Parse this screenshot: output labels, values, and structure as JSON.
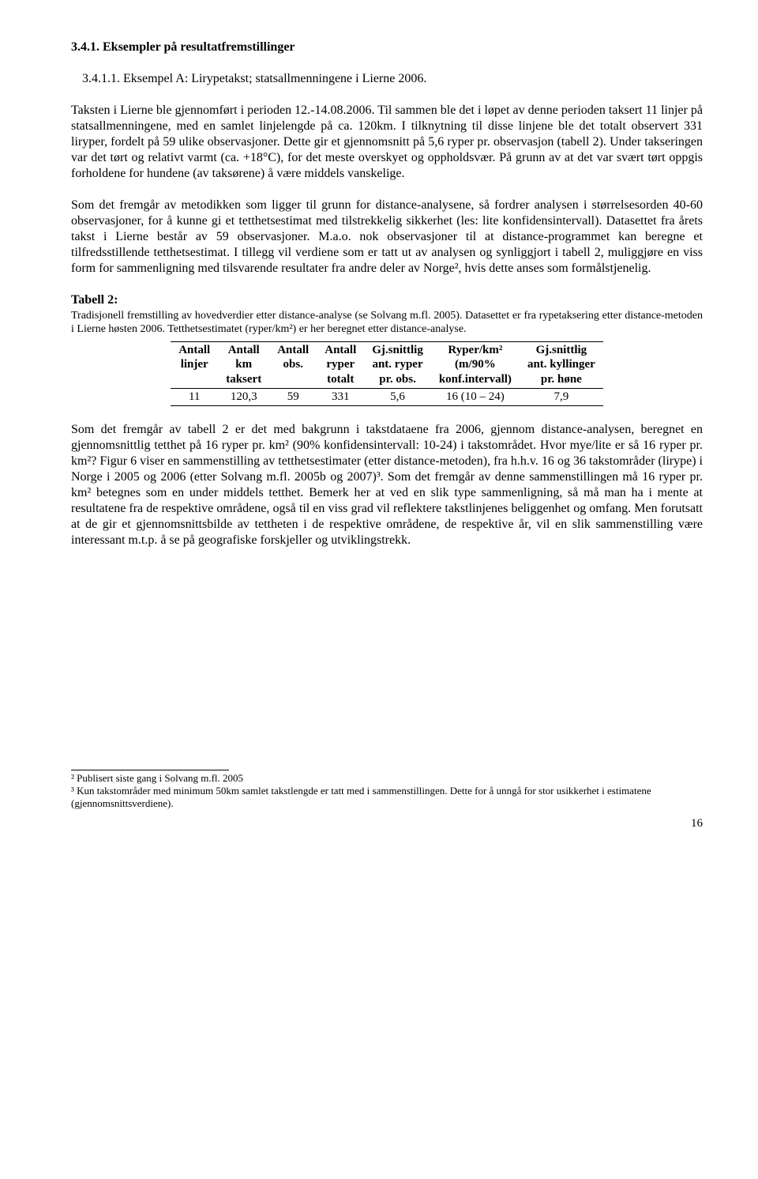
{
  "heading": "3.4.1. Eksempler på resultatfremstillinger",
  "subheading": "3.4.1.1. Eksempel A: Lirypetakst; statsallmenningene i Lierne 2006.",
  "para1": "Taksten i Lierne ble gjennomført i perioden 12.-14.08.2006. Til sammen ble det i løpet av denne perioden taksert 11 linjer på statsallmenningene, med en samlet linjelengde på ca. 120km. I tilknytning til disse linjene ble det totalt observert 331 liryper, fordelt på 59 ulike observasjoner. Dette gir et gjennomsnitt på 5,6 ryper pr. observasjon (tabell 2). Under takseringen var det tørt og relativt varmt (ca. +18°C), for det meste overskyet og oppholdsvær. På grunn av at det var svært tørt oppgis forholdene for hundene (av taksørene) å være middels vanskelige.",
  "para2": "Som det fremgår av metodikken som ligger til grunn for distance-analysene, så fordrer analysen i størrelsesorden 40-60 observasjoner, for å kunne gi et tetthetsestimat med tilstrekkelig sikkerhet (les: lite konfidensintervall). Datasettet fra årets takst i Lierne består av 59 observasjoner. M.a.o. nok observasjoner til at distance-programmet kan beregne et tilfredsstillende tetthetsestimat. I tillegg vil verdiene som er tatt ut av analysen og synliggjort i tabell 2, muliggjøre en viss form for sammenligning med tilsvarende resultater fra andre deler av Norge², hvis dette anses som formålstjenelig.",
  "table": {
    "caption_label": "Tabell 2:",
    "caption_desc": "Tradisjonell fremstilling av hovedverdier etter distance-analyse (se Solvang m.fl. 2005). Datasettet er fra rypetaksering etter distance-metoden i Lierne høsten 2006. Tetthetsestimatet (ryper/km²) er her beregnet etter distance-analyse.",
    "headers": {
      "c1a": "Antall",
      "c1b": "linjer",
      "c1c": "",
      "c2a": "Antall",
      "c2b": "km",
      "c2c": "taksert",
      "c3a": "Antall",
      "c3b": "obs.",
      "c3c": "",
      "c4a": "Antall",
      "c4b": "ryper",
      "c4c": "totalt",
      "c5a": "Gj.snittlig",
      "c5b": "ant. ryper",
      "c5c": "pr. obs.",
      "c6a": "Ryper/km²",
      "c6b": "(m/90%",
      "c6c": "konf.intervall)",
      "c7a": "Gj.snittlig",
      "c7b": "ant. kyllinger",
      "c7c": "pr. høne"
    },
    "row": {
      "c1": "11",
      "c2": "120,3",
      "c3": "59",
      "c4": "331",
      "c5": "5,6",
      "c6": "16 (10 – 24)",
      "c7": "7,9"
    }
  },
  "para3": "Som det fremgår av tabell 2 er det med bakgrunn i takstdataene fra 2006, gjennom distance-analysen, beregnet en gjennomsnittlig tetthet på 16 ryper pr. km² (90% konfidensintervall: 10-24) i takstområdet. Hvor mye/lite er så 16 ryper pr. km²? Figur 6 viser en sammenstilling av tetthetsestimater (etter distance-metoden), fra h.h.v. 16 og 36 takstområder (lirype) i Norge i 2005 og 2006 (etter Solvang m.fl. 2005b og 2007)³. Som det fremgår av denne sammenstillingen må 16 ryper pr. km² betegnes som en under middels tetthet. Bemerk her at ved en slik type sammenligning, så må man ha i mente at resultatene fra de respektive områdene, også til en viss grad vil reflektere takstlinjenes beliggenhet og omfang. Men forutsatt at de gir et gjennomsnittsbilde av tettheten i de respektive områdene, de respektive år, vil en slik sammenstilling være interessant m.t.p. å se på geografiske forskjeller og utviklingstrekk.",
  "footnotes": {
    "f1": "² Publisert siste gang i Solvang m.fl. 2005",
    "f2": "³ Kun takstområder med minimum 50km samlet takstlengde er tatt med i sammenstillingen. Dette for å unngå for stor usikkerhet i estimatene (gjennomsnittsverdiene)."
  },
  "page_number": "16"
}
